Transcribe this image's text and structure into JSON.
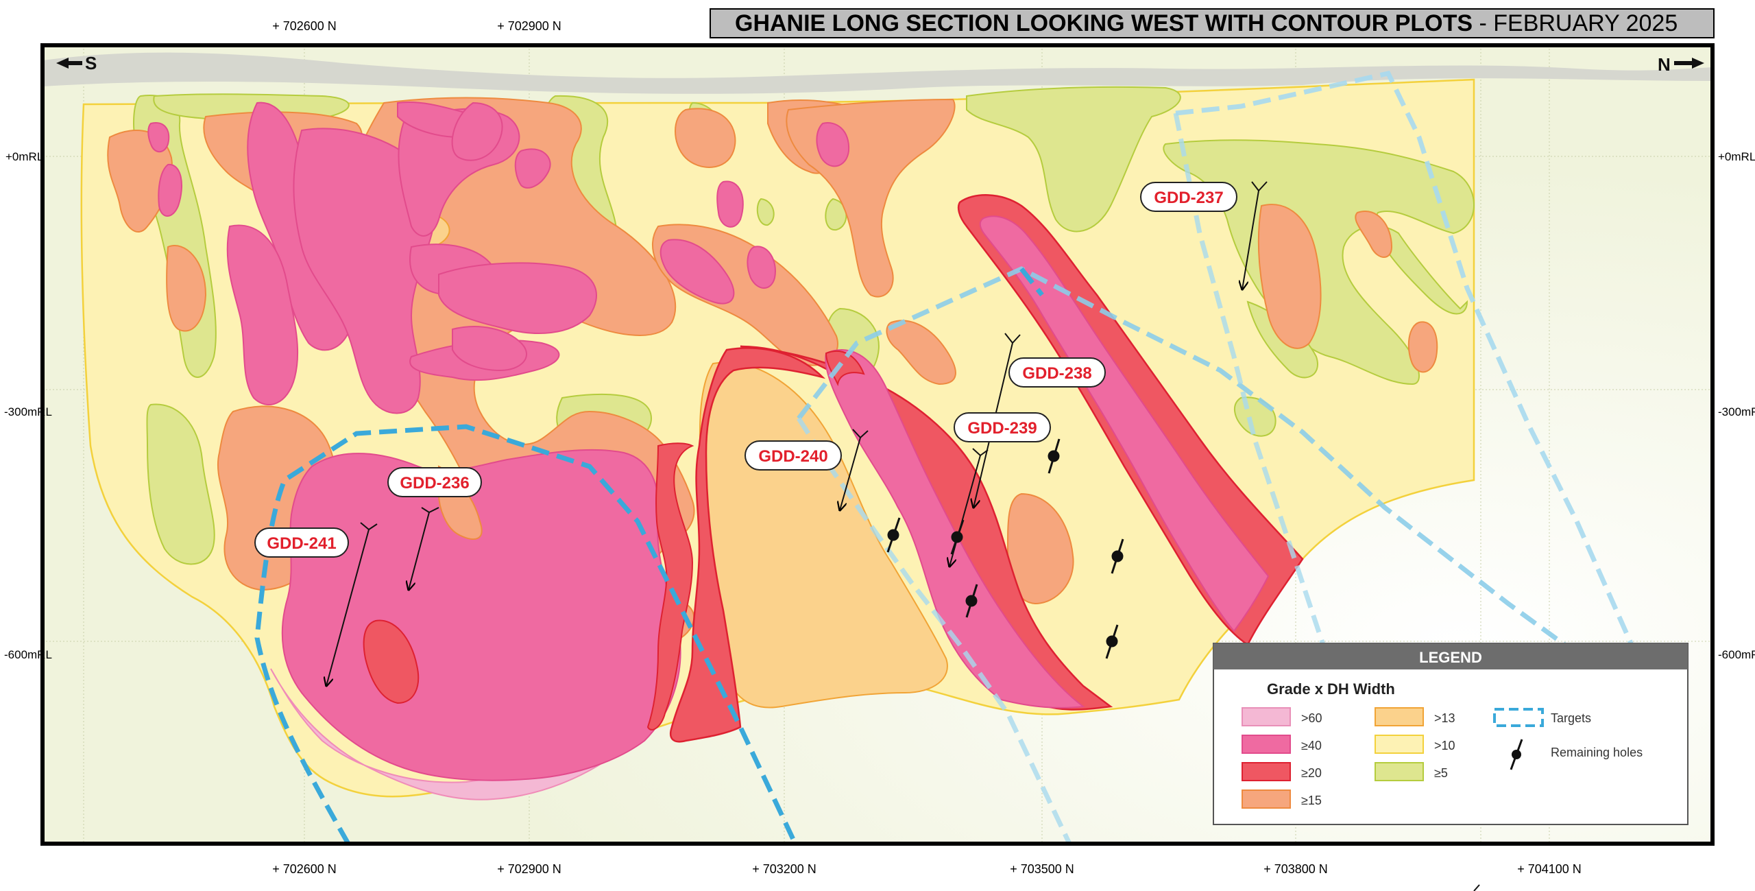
{
  "title": {
    "bold": "GHANIE LONG SECTION LOOKING WEST WITH CONTOUR PLOTS",
    "rest": " - FEBRUARY 2025"
  },
  "compass": {
    "south": "S",
    "north": "N"
  },
  "top_ticks": [
    "+ 702600 N",
    "+ 702900 N"
  ],
  "bottom_ticks": [
    "+ 702600 N",
    "+ 702900 N",
    "+ 703200 N",
    "+ 703500 N",
    "+ 703800 N",
    "+ 704100 N"
  ],
  "rl_ticks": [
    "+0mRL",
    "-300mRL",
    "-600mRL"
  ],
  "holes": {
    "gdd236": "GDD-236",
    "gdd237": "GDD-237",
    "gdd238": "GDD-238",
    "gdd239": "GDD-239",
    "gdd240": "GDD-240",
    "gdd241": "GDD-241"
  },
  "legend": {
    "header": "LEGEND",
    "subtitle": "Grade x DH Width",
    "grade_classes": [
      {
        "label": ">60",
        "color": "#f4b8d4"
      },
      {
        "label": "≥40",
        "color": "#ef6aa1"
      },
      {
        "label": "≥20",
        "color": "#ef5762"
      },
      {
        "label": "≥15",
        "color": "#f6a67d"
      },
      {
        "label": ">13",
        "color": "#fbd28c"
      },
      {
        "label": ">10",
        "color": "#fdf2b4"
      },
      {
        "label": "≥5",
        "color": "#dee68f"
      }
    ],
    "targets": "Targets",
    "remaining_holes": "Remaining holes"
  },
  "colors": {
    "target_outline": "#3aa9da",
    "hole_label_text": "#e2202c",
    "frame": "#000000",
    "surface": "#d8d8d0"
  }
}
